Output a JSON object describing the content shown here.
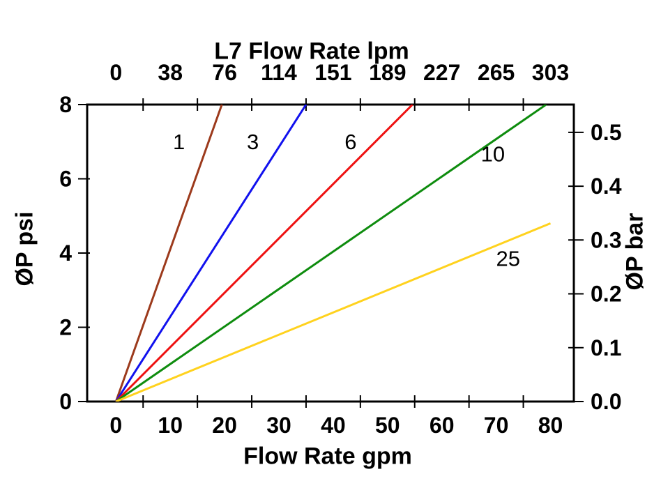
{
  "chart_data": {
    "type": "line",
    "background_color": "#ffffff",
    "axis_color": "#000000",
    "top_axis": {
      "title": "L7 Flow Rate lpm",
      "tick_labels": [
        "0",
        "38",
        "76",
        "114",
        "151",
        "189",
        "227",
        "265",
        "303"
      ],
      "tick_positions_gpm": [
        0,
        10,
        20,
        30,
        40,
        50,
        60,
        70,
        80
      ],
      "minor_tick_positions_gpm": [
        5,
        15,
        25,
        35,
        45,
        55,
        65,
        75
      ]
    },
    "bottom_axis": {
      "title": "Flow Rate gpm",
      "tick_labels": [
        "0",
        "10",
        "20",
        "30",
        "40",
        "50",
        "60",
        "70",
        "80"
      ],
      "tick_positions_gpm": [
        0,
        10,
        20,
        30,
        40,
        50,
        60,
        70,
        80
      ],
      "minor_tick_positions_gpm": [
        5,
        15,
        25,
        35,
        45,
        55,
        65,
        75
      ]
    },
    "left_axis": {
      "title": "ØP psi",
      "tick_labels": [
        "0",
        "2",
        "4",
        "6",
        "8"
      ],
      "tick_positions_psi": [
        0,
        2,
        4,
        6,
        8
      ],
      "range_psi": [
        0,
        8
      ]
    },
    "right_axis": {
      "title": "ØP bar",
      "tick_labels": [
        "0.0",
        "0.1",
        "0.2",
        "0.3",
        "0.4",
        "0.5"
      ],
      "tick_positions_bar": [
        0.0,
        0.1,
        0.2,
        0.3,
        0.4,
        0.5
      ]
    },
    "x_range_gpm": [
      -5.3,
      84.3
    ],
    "y_range_psi": [
      0,
      8
    ],
    "series": [
      {
        "label": "1",
        "color": "#9C3A1C",
        "points_gpm_psi": [
          [
            0,
            0
          ],
          [
            19.5,
            8
          ]
        ],
        "label_at_gpm_psi": [
          11.6,
          7.0
        ]
      },
      {
        "label": "3",
        "color": "#1111EE",
        "points_gpm_psi": [
          [
            0,
            0
          ],
          [
            35.0,
            8
          ]
        ],
        "label_at_gpm_psi": [
          25.2,
          7.0
        ]
      },
      {
        "label": "6",
        "color": "#EE1111",
        "points_gpm_psi": [
          [
            0,
            0
          ],
          [
            54.6,
            8
          ]
        ],
        "label_at_gpm_psi": [
          43.2,
          7.0
        ]
      },
      {
        "label": "10",
        "color": "#0E8C0E",
        "points_gpm_psi": [
          [
            0,
            0
          ],
          [
            79.2,
            8
          ]
        ],
        "label_at_gpm_psi": [
          69.4,
          6.67
        ]
      },
      {
        "label": "25",
        "color": "#FFD21E",
        "points_gpm_psi": [
          [
            0,
            0
          ],
          [
            80.0,
            4.8
          ]
        ],
        "label_at_gpm_psi": [
          72.2,
          3.85
        ]
      }
    ]
  }
}
